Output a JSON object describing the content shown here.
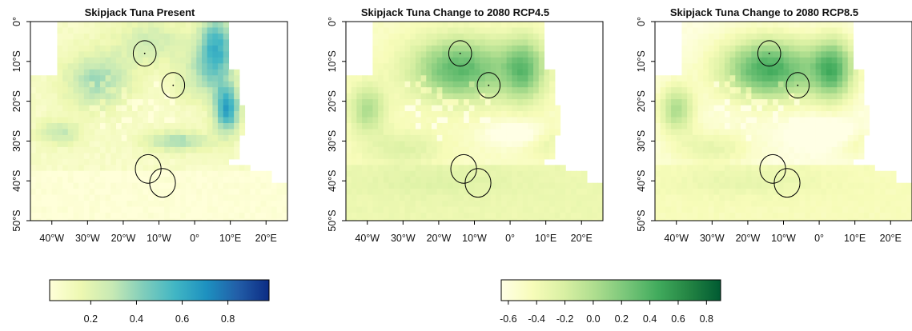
{
  "panels": [
    {
      "title": "Skipjack Tuna Present",
      "scale": "present",
      "x_ticks": [
        "40°W",
        "30°W",
        "20°W",
        "10°W",
        "0°",
        "10°E",
        "20°E"
      ],
      "y_ticks": [
        "0°",
        "10°S",
        "20°S",
        "30°S",
        "40°S",
        "50°S"
      ]
    },
    {
      "title": "Skipjack Tuna Change to 2080 RCP4.5",
      "scale": "change",
      "x_ticks": [
        "40°W",
        "30°W",
        "20°W",
        "10°W",
        "0°",
        "10°E",
        "20°E"
      ],
      "y_ticks": [
        "0°",
        "10°S",
        "20°S",
        "30°S",
        "40°S",
        "50°S"
      ]
    },
    {
      "title": "Skipjack Tuna Change to 2080 RCP8.5",
      "scale": "change",
      "x_ticks": [
        "40°W",
        "30°W",
        "20°W",
        "10°W",
        "0°",
        "10°E",
        "20°E"
      ],
      "y_ticks": [
        "0°",
        "10°S",
        "20°S",
        "30°S",
        "40°S",
        "50°S"
      ]
    }
  ],
  "legends": [
    {
      "scale": "present",
      "palette": "YlGnBu",
      "colors": [
        "#ffffd9",
        "#edf8b1",
        "#c7e9b4",
        "#7fcdbb",
        "#41b6c4",
        "#1d91c0",
        "#225ea8",
        "#0c2c84"
      ],
      "range": [
        0.02,
        0.98
      ],
      "ticks": [
        0.2,
        0.4,
        0.6,
        0.8
      ],
      "tick_labels": [
        "0.2",
        "0.4",
        "0.6",
        "0.8"
      ]
    },
    {
      "scale": "change",
      "palette": "YlGn",
      "colors": [
        "#ffffe5",
        "#f7fcb9",
        "#d9f0a3",
        "#addd8e",
        "#78c679",
        "#41ab5d",
        "#238443",
        "#005a32"
      ],
      "range": [
        -0.65,
        0.9
      ],
      "ticks": [
        -0.6,
        -0.4,
        -0.2,
        0.0,
        0.2,
        0.4,
        0.6,
        0.8
      ],
      "tick_labels": [
        "-0.6",
        "-0.4",
        "-0.2",
        "0.0",
        "0.2",
        "0.4",
        "0.6",
        "0.8"
      ]
    }
  ],
  "map_extent": {
    "lon": [
      -46,
      26
    ],
    "lat": [
      -50,
      0
    ]
  },
  "circles": [
    {
      "lon": -14,
      "lat": -8,
      "radius_deg": 3.2
    },
    {
      "lon": -6,
      "lat": -16,
      "radius_deg": 3.2
    },
    {
      "lon": -13,
      "lat": -37,
      "radius_deg": 3.6
    },
    {
      "lon": -9,
      "lat": -40.5,
      "radius_deg": 3.6
    }
  ]
}
